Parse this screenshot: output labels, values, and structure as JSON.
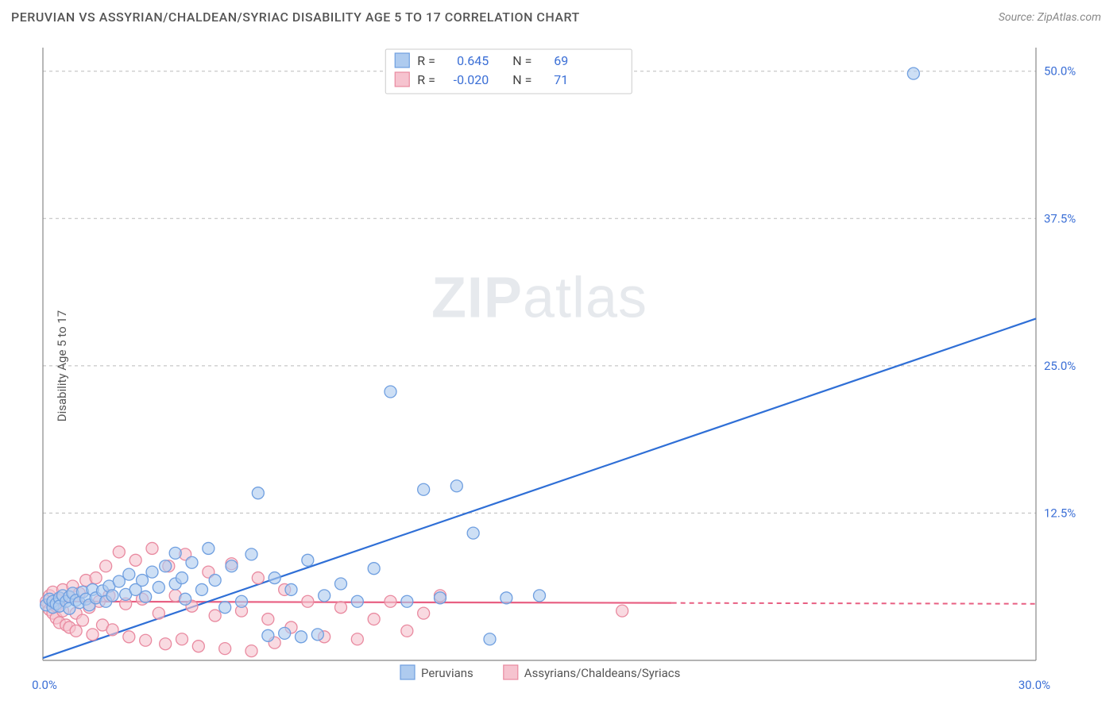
{
  "header": {
    "title": "PERUVIAN VS ASSYRIAN/CHALDEAN/SYRIAC DISABILITY AGE 5 TO 17 CORRELATION CHART",
    "source": "Source: ZipAtlas.com"
  },
  "ylabel": "Disability Age 5 to 17",
  "watermark": {
    "bold": "ZIP",
    "rest": "atlas"
  },
  "chart": {
    "type": "scatter",
    "plot_bg": "#ffffff",
    "grid_color": "#bbbbbb",
    "axis_color": "#888888",
    "tick_color": "#3b6fd6",
    "xlim": [
      0,
      30
    ],
    "ylim": [
      0,
      52
    ],
    "xticks": [
      {
        "v": 0,
        "label": "0.0%"
      },
      {
        "v": 30,
        "label": "30.0%"
      }
    ],
    "yticks": [
      {
        "v": 12.5,
        "label": "12.5%"
      },
      {
        "v": 25.0,
        "label": "25.0%"
      },
      {
        "v": 37.5,
        "label": "37.5%"
      },
      {
        "v": 50.0,
        "label": "50.0%"
      }
    ],
    "series": [
      {
        "name": "Peruvians",
        "color_fill": "#aecbef",
        "color_stroke": "#6f9fe0",
        "trend_color": "#2f6fd6",
        "r_label": "R =",
        "r_value": "0.645",
        "n_label": "N =",
        "n_value": "69",
        "trend": {
          "x1": 0,
          "y1": 0.2,
          "x2": 30,
          "y2": 29.0,
          "x_solid_end": 30
        },
        "points": [
          [
            0.1,
            4.7
          ],
          [
            0.2,
            5.2
          ],
          [
            0.3,
            4.5
          ],
          [
            0.3,
            5.0
          ],
          [
            0.4,
            4.8
          ],
          [
            0.5,
            5.3
          ],
          [
            0.5,
            4.6
          ],
          [
            0.6,
            5.5
          ],
          [
            0.7,
            5.0
          ],
          [
            0.8,
            5.4
          ],
          [
            0.8,
            4.4
          ],
          [
            0.9,
            5.7
          ],
          [
            1.0,
            5.1
          ],
          [
            1.1,
            4.9
          ],
          [
            1.2,
            5.8
          ],
          [
            1.3,
            5.2
          ],
          [
            1.4,
            4.7
          ],
          [
            1.5,
            6.0
          ],
          [
            1.6,
            5.3
          ],
          [
            1.8,
            5.9
          ],
          [
            1.9,
            5.0
          ],
          [
            2.0,
            6.3
          ],
          [
            2.1,
            5.5
          ],
          [
            2.3,
            6.7
          ],
          [
            2.5,
            5.6
          ],
          [
            2.6,
            7.3
          ],
          [
            2.8,
            6.0
          ],
          [
            3.0,
            6.8
          ],
          [
            3.1,
            5.4
          ],
          [
            3.3,
            7.5
          ],
          [
            3.5,
            6.2
          ],
          [
            3.7,
            8.0
          ],
          [
            4.0,
            6.5
          ],
          [
            4.0,
            9.1
          ],
          [
            4.2,
            7.0
          ],
          [
            4.3,
            5.2
          ],
          [
            4.5,
            8.3
          ],
          [
            4.8,
            6.0
          ],
          [
            5.0,
            9.5
          ],
          [
            5.2,
            6.8
          ],
          [
            5.5,
            4.5
          ],
          [
            5.7,
            8.0
          ],
          [
            6.0,
            5.0
          ],
          [
            6.3,
            9.0
          ],
          [
            6.5,
            14.2
          ],
          [
            6.8,
            2.1
          ],
          [
            7.0,
            7.0
          ],
          [
            7.3,
            2.3
          ],
          [
            7.5,
            6.0
          ],
          [
            7.8,
            2.0
          ],
          [
            8.0,
            8.5
          ],
          [
            8.3,
            2.2
          ],
          [
            8.5,
            5.5
          ],
          [
            9.0,
            6.5
          ],
          [
            9.5,
            5.0
          ],
          [
            10.0,
            7.8
          ],
          [
            10.5,
            22.8
          ],
          [
            11.0,
            5.0
          ],
          [
            11.5,
            14.5
          ],
          [
            12.0,
            5.3
          ],
          [
            12.5,
            14.8
          ],
          [
            13.0,
            10.8
          ],
          [
            13.5,
            1.8
          ],
          [
            14.0,
            5.3
          ],
          [
            15.0,
            5.5
          ],
          [
            26.3,
            49.8
          ]
        ]
      },
      {
        "name": "Assyrians/Chaldeans/Syriacs",
        "color_fill": "#f6c3cf",
        "color_stroke": "#e98aa0",
        "trend_color": "#e85f82",
        "r_label": "R =",
        "r_value": "-0.020",
        "n_label": "N =",
        "n_value": "71",
        "trend": {
          "x1": 0,
          "y1": 5.0,
          "x2": 30,
          "y2": 4.8,
          "x_solid_end": 19
        },
        "points": [
          [
            0.1,
            5.0
          ],
          [
            0.2,
            4.3
          ],
          [
            0.2,
            5.5
          ],
          [
            0.3,
            4.0
          ],
          [
            0.3,
            5.8
          ],
          [
            0.4,
            4.6
          ],
          [
            0.4,
            3.6
          ],
          [
            0.5,
            5.2
          ],
          [
            0.5,
            3.2
          ],
          [
            0.6,
            6.0
          ],
          [
            0.6,
            4.2
          ],
          [
            0.7,
            3.0
          ],
          [
            0.8,
            5.4
          ],
          [
            0.8,
            2.8
          ],
          [
            0.9,
            6.3
          ],
          [
            1.0,
            4.0
          ],
          [
            1.0,
            2.5
          ],
          [
            1.1,
            5.7
          ],
          [
            1.2,
            3.4
          ],
          [
            1.3,
            6.8
          ],
          [
            1.4,
            4.5
          ],
          [
            1.5,
            2.2
          ],
          [
            1.6,
            7.0
          ],
          [
            1.7,
            5.0
          ],
          [
            1.8,
            3.0
          ],
          [
            1.9,
            8.0
          ],
          [
            2.0,
            5.5
          ],
          [
            2.1,
            2.6
          ],
          [
            2.3,
            9.2
          ],
          [
            2.5,
            4.8
          ],
          [
            2.6,
            2.0
          ],
          [
            2.8,
            8.5
          ],
          [
            3.0,
            5.2
          ],
          [
            3.1,
            1.7
          ],
          [
            3.3,
            9.5
          ],
          [
            3.5,
            4.0
          ],
          [
            3.7,
            1.4
          ],
          [
            3.8,
            8.0
          ],
          [
            4.0,
            5.5
          ],
          [
            4.2,
            1.8
          ],
          [
            4.3,
            9.0
          ],
          [
            4.5,
            4.6
          ],
          [
            4.7,
            1.2
          ],
          [
            5.0,
            7.5
          ],
          [
            5.2,
            3.8
          ],
          [
            5.5,
            1.0
          ],
          [
            5.7,
            8.2
          ],
          [
            6.0,
            4.2
          ],
          [
            6.3,
            0.8
          ],
          [
            6.5,
            7.0
          ],
          [
            6.8,
            3.5
          ],
          [
            7.0,
            1.5
          ],
          [
            7.3,
            6.0
          ],
          [
            7.5,
            2.8
          ],
          [
            8.0,
            5.0
          ],
          [
            8.5,
            2.0
          ],
          [
            9.0,
            4.5
          ],
          [
            9.5,
            1.8
          ],
          [
            10.0,
            3.5
          ],
          [
            10.5,
            5.0
          ],
          [
            11.0,
            2.5
          ],
          [
            11.5,
            4.0
          ],
          [
            12.0,
            5.5
          ],
          [
            17.5,
            4.2
          ]
        ]
      }
    ],
    "bottom_legend": [
      {
        "swatch_fill": "#aecbef",
        "swatch_stroke": "#6f9fe0",
        "label": "Peruvians"
      },
      {
        "swatch_fill": "#f6c3cf",
        "swatch_stroke": "#e98aa0",
        "label": "Assyrians/Chaldeans/Syriacs"
      }
    ]
  }
}
